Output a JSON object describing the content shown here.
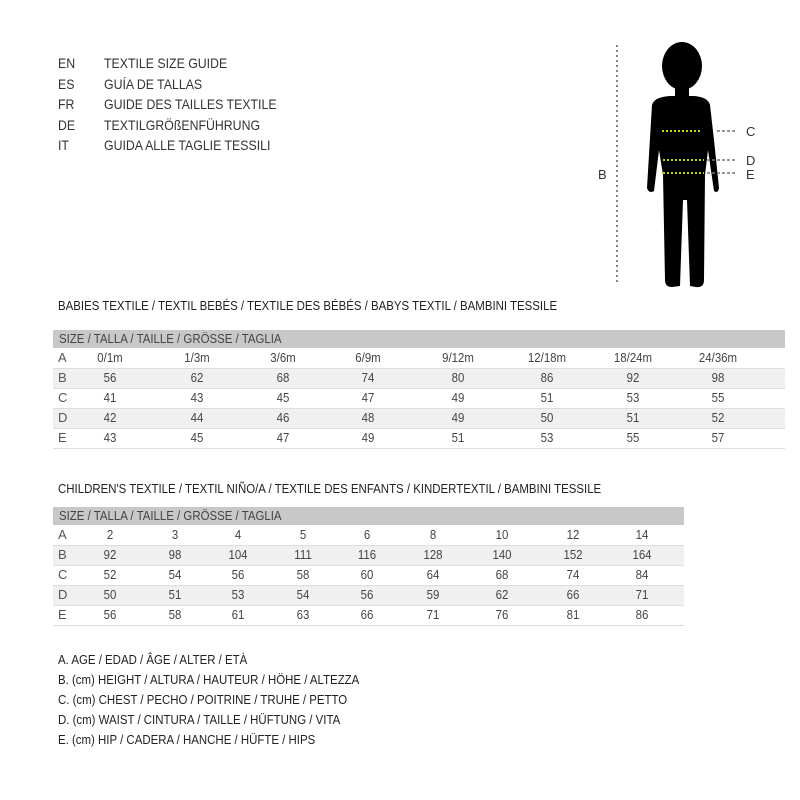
{
  "languages": [
    {
      "code": "EN",
      "text": "TEXTILE SIZE GUIDE"
    },
    {
      "code": "ES",
      "text": "GUÍA DE TALLAS"
    },
    {
      "code": "FR",
      "text": "GUIDE DES TAILLES TEXTILE"
    },
    {
      "code": "DE",
      "text": "TEXTILGRÖßENFÜHRUNG"
    },
    {
      "code": "IT",
      "text": "GUIDA ALLE TAGLIE TESSILI"
    }
  ],
  "figure": {
    "labels": {
      "b": "B",
      "c": "C",
      "d": "D",
      "e": "E"
    },
    "measure_color": "#c8d400"
  },
  "babies": {
    "heading": "BABIES TEXTILE / TEXTIL BEBÉS / TEXTILE DES BÉBÉS / BABYS TEXTIL  / BAMBINI TESSILE",
    "size_header": "SIZE / TALLA / TAILLE / GRÖSSE / TAGLIA",
    "rows": [
      {
        "label": "A",
        "values": [
          "0/1m",
          "1/3m",
          "3/6m",
          "6/9m",
          "9/12m",
          "12/18m",
          "18/24m",
          "24/36m"
        ]
      },
      {
        "label": "B",
        "values": [
          "56",
          "62",
          "68",
          "74",
          "80",
          "86",
          "92",
          "98"
        ]
      },
      {
        "label": "C",
        "values": [
          "41",
          "43",
          "45",
          "47",
          "49",
          "51",
          "53",
          "55"
        ]
      },
      {
        "label": "D",
        "values": [
          "42",
          "44",
          "46",
          "48",
          "49",
          "50",
          "51",
          "52"
        ]
      },
      {
        "label": "E",
        "values": [
          "43",
          "45",
          "47",
          "49",
          "51",
          "53",
          "55",
          "57"
        ]
      }
    ]
  },
  "children": {
    "heading": "CHILDREN'S TEXTILE / TEXTIL NIÑO/A / TEXTILE DES ENFANTS / KINDERTEXTIL / BAMBINI TESSILE",
    "size_header": "SIZE / TALLA / TAILLE / GRÖSSE / TAGLIA",
    "rows": [
      {
        "label": "A",
        "values": [
          "2",
          "3",
          "4",
          "5",
          "6",
          "8",
          "10",
          "12",
          "14"
        ]
      },
      {
        "label": "B",
        "values": [
          "92",
          "98",
          "104",
          "111",
          "116",
          "128",
          "140",
          "152",
          "164"
        ]
      },
      {
        "label": "C",
        "values": [
          "52",
          "54",
          "56",
          "58",
          "60",
          "64",
          "68",
          "74",
          "84"
        ]
      },
      {
        "label": "D",
        "values": [
          "50",
          "51",
          "53",
          "54",
          "56",
          "59",
          "62",
          "66",
          "71"
        ]
      },
      {
        "label": "E",
        "values": [
          "56",
          "58",
          "61",
          "63",
          "66",
          "71",
          "76",
          "81",
          "86"
        ]
      }
    ]
  },
  "legend": [
    "A. AGE / EDAD / ÂGE / ALTER / ETÀ",
    "B. (cm) HEIGHT / ALTURA / HAUTEUR / HÖHE / ALTEZZA",
    "C. (cm) CHEST / PECHO / POITRINE / TRUHE / PETTO",
    "D. (cm) WAIST / CINTURA / TAILLE / HÜFTUNG / VITA",
    "E. (cm) HIP / CADERA / HANCHE / HÜFTE / HIPS"
  ]
}
